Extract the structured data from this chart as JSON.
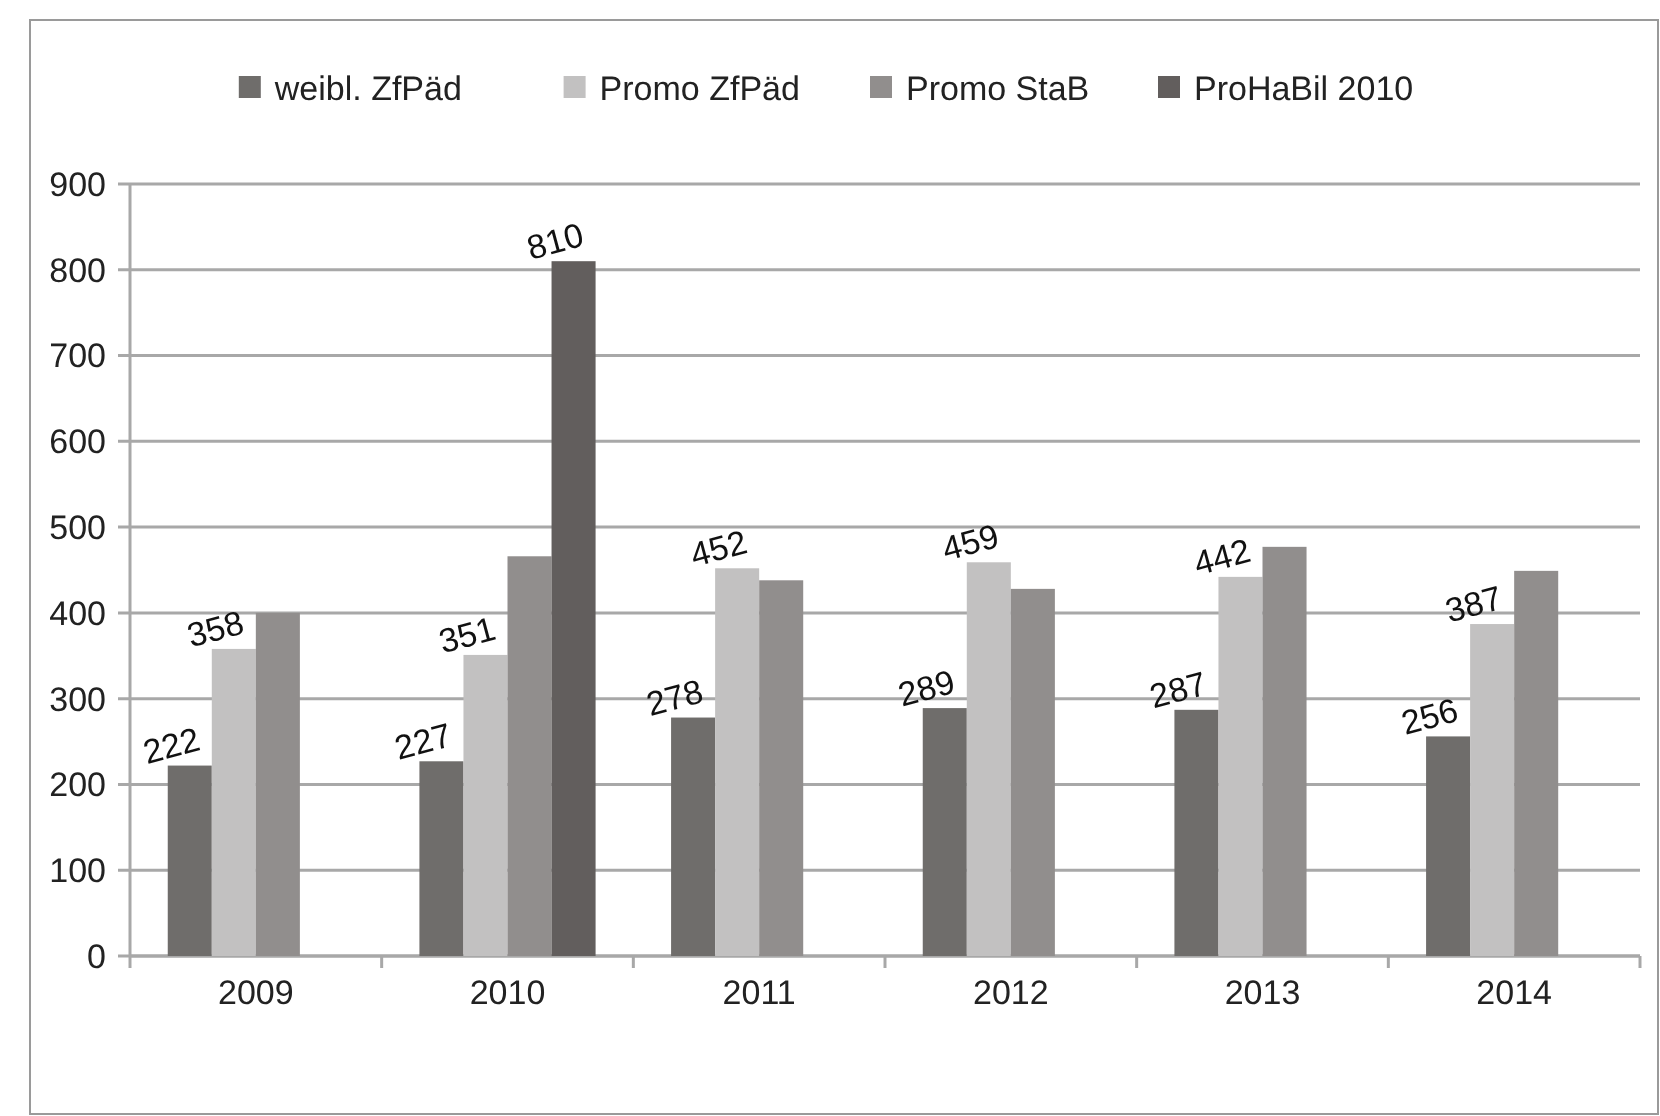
{
  "chart_data": {
    "type": "bar",
    "categories": [
      "2009",
      "2010",
      "2011",
      "2012",
      "2013",
      "2014"
    ],
    "series": [
      {
        "name": "weibl. ZfPäd",
        "color": "#6f6d6b",
        "values": [
          222,
          227,
          278,
          289,
          287,
          256
        ],
        "value_labels": [
          "222",
          "227",
          "278",
          "289",
          "287",
          "256"
        ]
      },
      {
        "name": "Promo ZfPäd",
        "color": "#c2c1c1",
        "values": [
          358,
          351,
          452,
          459,
          442,
          387
        ],
        "value_labels": [
          "358",
          "351",
          "452",
          "459",
          "442",
          "387"
        ]
      },
      {
        "name": "Promo StaB",
        "color": "#918e8d",
        "values": [
          400,
          466,
          438,
          428,
          477,
          449
        ]
      },
      {
        "name": "ProHaBil 2010",
        "color": "#625e5d",
        "values": [
          null,
          810,
          null,
          null,
          null,
          null
        ],
        "value_labels": [
          null,
          "810",
          null,
          null,
          null,
          null
        ]
      }
    ],
    "ylim": [
      0,
      900
    ],
    "yticks": [
      0,
      100,
      200,
      300,
      400,
      500,
      600,
      700,
      800,
      900
    ],
    "grid": "y",
    "legend": "top"
  }
}
